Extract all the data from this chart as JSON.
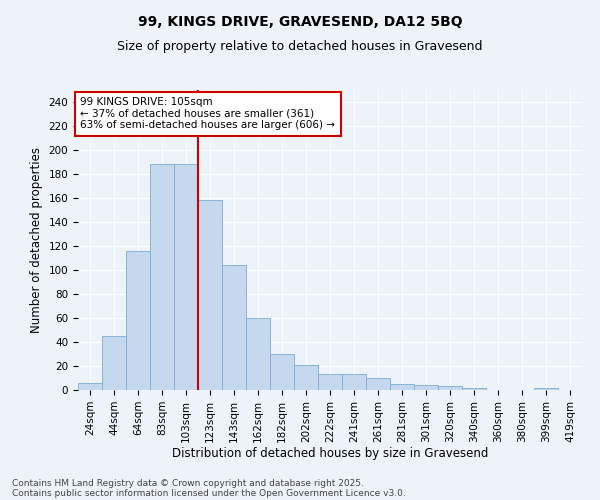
{
  "title1": "99, KINGS DRIVE, GRAVESEND, DA12 5BQ",
  "title2": "Size of property relative to detached houses in Gravesend",
  "xlabel": "Distribution of detached houses by size in Gravesend",
  "ylabel": "Number of detached properties",
  "bar_labels": [
    "24sqm",
    "44sqm",
    "64sqm",
    "83sqm",
    "103sqm",
    "123sqm",
    "143sqm",
    "162sqm",
    "182sqm",
    "202sqm",
    "222sqm",
    "241sqm",
    "261sqm",
    "281sqm",
    "301sqm",
    "320sqm",
    "340sqm",
    "360sqm",
    "380sqm",
    "399sqm",
    "419sqm"
  ],
  "bar_values": [
    6,
    45,
    116,
    188,
    188,
    158,
    104,
    60,
    30,
    21,
    13,
    13,
    10,
    5,
    4,
    3,
    2,
    0,
    0,
    2,
    0
  ],
  "bar_color": "#c5d8ed",
  "bar_edgecolor": "#7aadd4",
  "property_label": "99 KINGS DRIVE: 105sqm",
  "annotation_line1": "← 37% of detached houses are smaller (361)",
  "annotation_line2": "63% of semi-detached houses are larger (606) →",
  "vline_color": "#cc0000",
  "vline_x": 4.5,
  "ylim": [
    0,
    250
  ],
  "yticks": [
    0,
    20,
    40,
    60,
    80,
    100,
    120,
    140,
    160,
    180,
    200,
    220,
    240
  ],
  "footer1": "Contains HM Land Registry data © Crown copyright and database right 2025.",
  "footer2": "Contains public sector information licensed under the Open Government Licence v3.0.",
  "bg_color": "#eef3f9",
  "grid_color": "#ffffff",
  "title_fontsize": 10,
  "subtitle_fontsize": 9,
  "axis_label_fontsize": 8.5,
  "tick_fontsize": 7.5,
  "annotation_fontsize": 7.5,
  "footer_fontsize": 6.5
}
